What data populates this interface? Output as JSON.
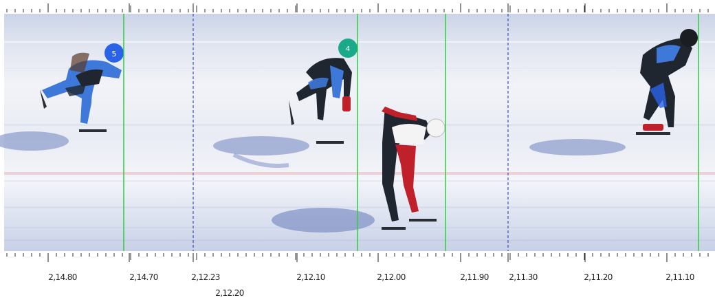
{
  "image": {
    "kind": "photo-finish scan, speed skating",
    "colors": {
      "ice_light": "#eef0f6",
      "ice_blue": "#c9d3ec",
      "finish_line": "#2ecc40",
      "segment_divider": "#3b4bbd",
      "skater_dark": "#1f2630",
      "skater_blue": "#3e78d8",
      "skater_red": "#c0202a",
      "helmet_blue": "#2a63e8",
      "helmet_teal": "#1aa98a",
      "helmet_white": "#f4f4f4",
      "helmet_black": "#1a1d22"
    },
    "skaters": [
      {
        "id": "skater-1",
        "helmet": "blue",
        "helmet_number": "5",
        "suit": "blue/black"
      },
      {
        "id": "skater-2",
        "helmet": "teal",
        "helmet_number": "4",
        "suit": "black/blue"
      },
      {
        "id": "skater-3",
        "helmet": "white",
        "suit": "red/white/black"
      },
      {
        "id": "skater-4",
        "helmet": "black",
        "suit": "black/blue"
      }
    ],
    "time_labels": [
      "2,14.80",
      "2,14.70",
      "2,12.23",
      "2,12.20",
      "2,12.10",
      "2,12.00",
      "2,11.90",
      "2,11.30",
      "2,11.20",
      "2,11.10"
    ]
  }
}
